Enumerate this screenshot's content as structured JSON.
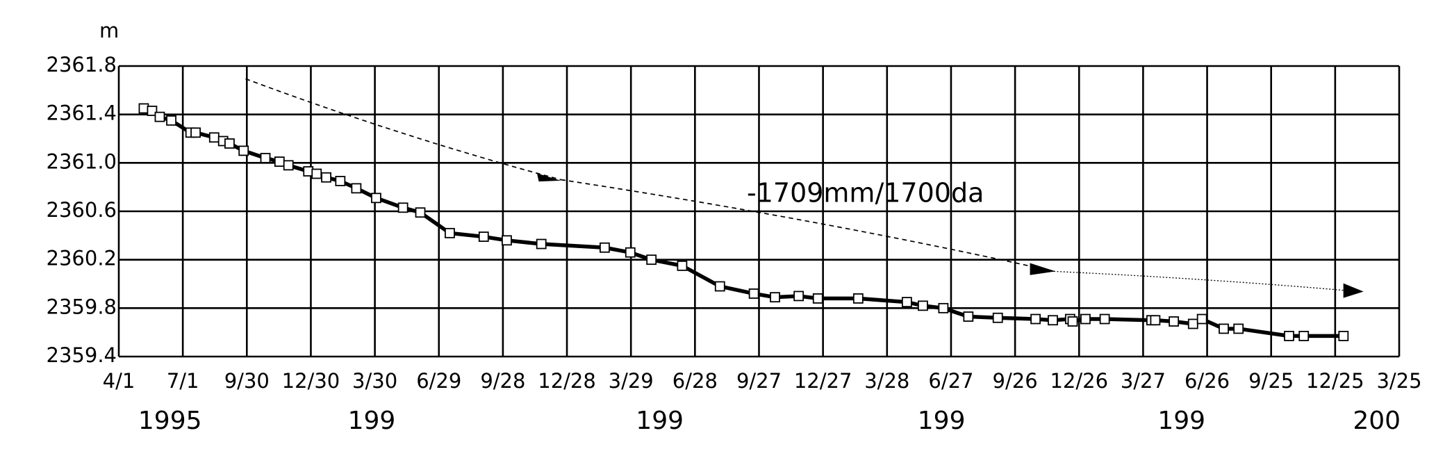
{
  "chart_data": {
    "type": "line",
    "y_label": "m",
    "annotation": "-1709mm/1700da",
    "xlim": [
      0,
      20
    ],
    "xticks": [
      {
        "value": 0,
        "label": "4/1"
      },
      {
        "value": 1,
        "label": "7/1"
      },
      {
        "value": 2,
        "label": "9/30"
      },
      {
        "value": 3,
        "label": "12/30"
      },
      {
        "value": 4,
        "label": "3/30"
      },
      {
        "value": 5,
        "label": "6/29"
      },
      {
        "value": 6,
        "label": "9/28"
      },
      {
        "value": 7,
        "label": "12/28"
      },
      {
        "value": 8,
        "label": "3/29"
      },
      {
        "value": 9,
        "label": "6/28"
      },
      {
        "value": 10,
        "label": "9/27"
      },
      {
        "value": 11,
        "label": "12/27"
      },
      {
        "value": 12,
        "label": "3/28"
      },
      {
        "value": 13,
        "label": "6/27"
      },
      {
        "value": 14,
        "label": "9/26"
      },
      {
        "value": 15,
        "label": "12/26"
      },
      {
        "value": 16,
        "label": "3/27"
      },
      {
        "value": 17,
        "label": "6/26"
      },
      {
        "value": 18,
        "label": "9/25"
      },
      {
        "value": 19,
        "label": "12/25"
      },
      {
        "value": 20,
        "label": "3/25"
      }
    ],
    "year_labels": [
      {
        "x": 0.8,
        "label": "1995"
      },
      {
        "x": 3.95,
        "label": "199"
      },
      {
        "x": 8.45,
        "label": "199"
      },
      {
        "x": 12.85,
        "label": "199"
      },
      {
        "x": 16.6,
        "label": "199"
      },
      {
        "x": 19.65,
        "label": "200"
      }
    ],
    "ylim": [
      2359.4,
      2361.8
    ],
    "yticks": [
      2359.4,
      2359.8,
      2360.2,
      2360.6,
      {
        "value": 2361.0,
        "label": "2361.0"
      },
      2361.4,
      2361.8
    ],
    "grid": true,
    "series": [
      {
        "color": "#000000",
        "x": [
          0.39,
          0.52,
          0.64,
          0.82,
          1.12,
          1.2,
          1.49,
          1.63,
          1.73,
          1.95,
          2.29,
          2.51,
          2.65,
          2.96,
          3.09,
          3.24,
          3.46,
          3.71,
          4.02,
          4.44,
          4.71,
          5.17,
          5.7,
          6.06,
          6.6,
          7.59,
          7.99,
          8.32,
          8.8,
          9.39,
          9.92,
          10.25,
          10.62,
          10.92,
          11.55,
          12.31,
          12.56,
          12.88,
          13.27,
          13.73,
          14.32,
          14.59,
          14.86,
          14.9,
          15.1,
          15.4,
          16.13,
          16.19,
          16.48,
          16.78,
          16.92,
          17.26,
          17.49,
          18.28,
          18.51,
          19.13
        ],
        "values": [
          2361.45,
          2361.43,
          2361.38,
          2361.35,
          2361.25,
          2361.25,
          2361.21,
          2361.18,
          2361.16,
          2361.1,
          2361.04,
          2361.01,
          2360.98,
          2360.93,
          2360.91,
          2360.88,
          2360.85,
          2360.79,
          2360.71,
          2360.63,
          2360.59,
          2360.42,
          2360.39,
          2360.36,
          2360.33,
          2360.3,
          2360.26,
          2360.2,
          2360.15,
          2359.98,
          2359.92,
          2359.89,
          2359.9,
          2359.88,
          2359.88,
          2359.85,
          2359.82,
          2359.8,
          2359.73,
          2359.72,
          2359.71,
          2359.7,
          2359.71,
          2359.69,
          2359.71,
          2359.71,
          2359.7,
          2359.7,
          2359.69,
          2359.67,
          2359.71,
          2359.63,
          2359.63,
          2359.57,
          2359.57,
          2359.57
        ]
      }
    ]
  }
}
